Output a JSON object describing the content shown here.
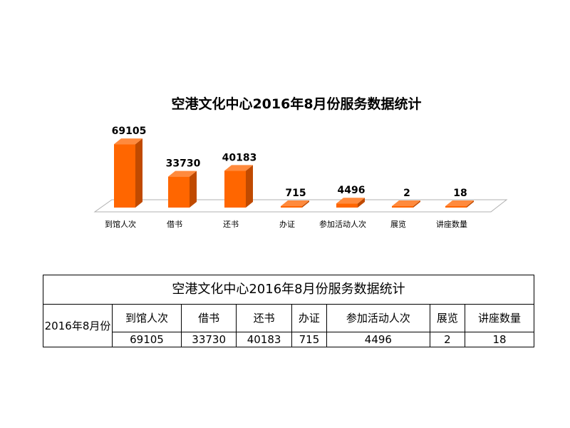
{
  "chart_data": {
    "type": "bar",
    "title": "空港文化中心2016年8月份服务数据统计",
    "categories": [
      "到馆人次",
      "借书",
      "还书",
      "办证",
      "参加活动人次",
      "展览",
      "讲座数量"
    ],
    "values": [
      69105,
      33730,
      40183,
      715,
      4496,
      2,
      18
    ],
    "value_labels": [
      "69105",
      "33730",
      "40183",
      "715",
      "4496",
      "2",
      "18"
    ],
    "ylim": [
      0,
      70000
    ],
    "grid": false,
    "legend": "none",
    "bar_color": "#FF6600",
    "bar_side_color": "#C04A00",
    "bar_top_color": "#FF8A3D"
  },
  "table": {
    "title": "空港文化中心2016年8月份服务数据统计",
    "period": "2016年8月份",
    "headers": [
      "到馆人次",
      "借书",
      "还书",
      "办证",
      "参加活动人次",
      "展览",
      "讲座数量"
    ],
    "values": [
      "69105",
      "33730",
      "40183",
      "715",
      "4496",
      "2",
      "18"
    ]
  }
}
